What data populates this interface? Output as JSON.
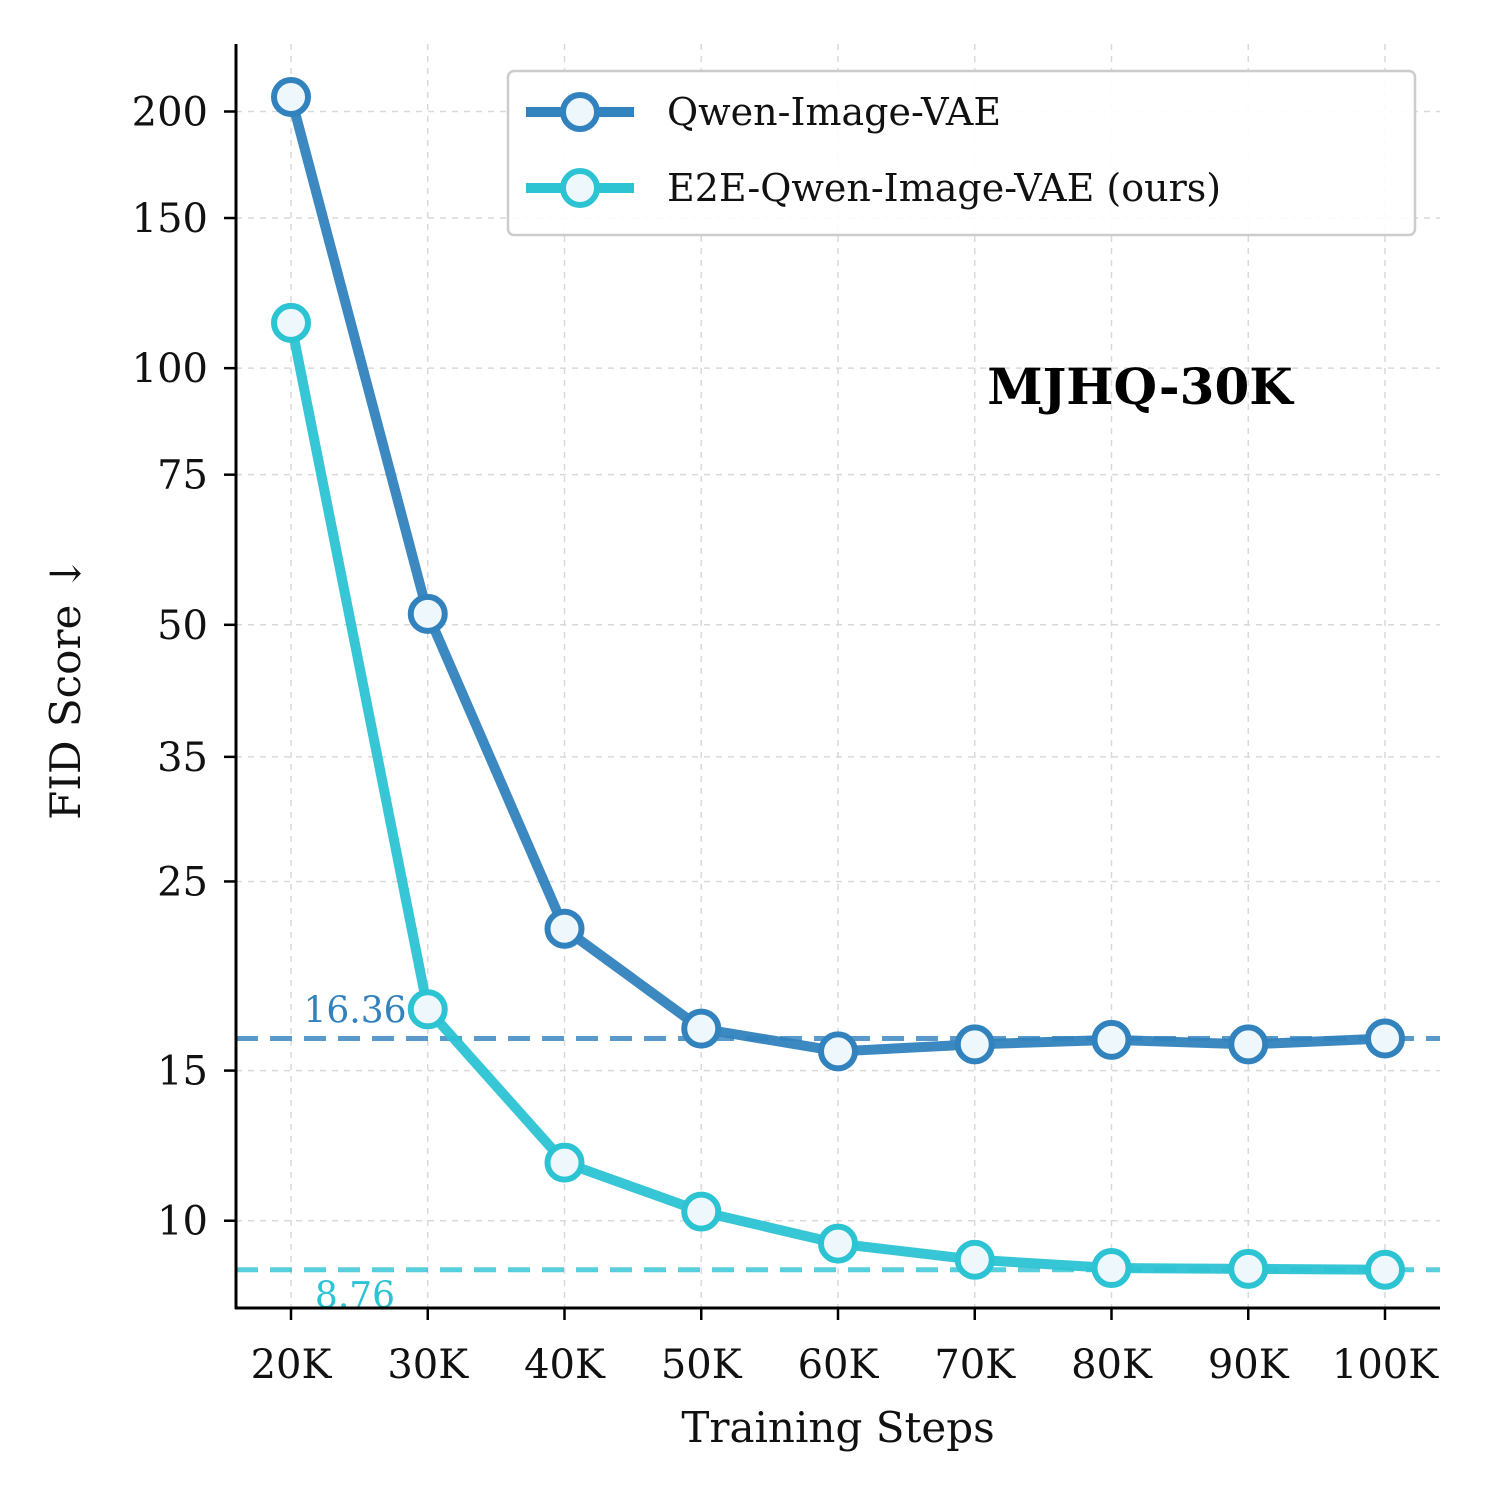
{
  "chart_data": {
    "type": "line",
    "xlabel": "Training Steps",
    "ylabel": "FID Score ↓",
    "annotation": "MJHQ-30K",
    "y_scale": "log",
    "ylim": [
      7.9,
      240
    ],
    "x": [
      20000,
      30000,
      40000,
      50000,
      60000,
      70000,
      80000,
      90000,
      100000
    ],
    "x_tick_labels": [
      "20K",
      "30K",
      "40K",
      "50K",
      "60K",
      "70K",
      "80K",
      "90K",
      "100K"
    ],
    "y_ticks": [
      10,
      15,
      25,
      35,
      50,
      75,
      100,
      150,
      200
    ],
    "y_tick_labels": [
      "10",
      "15",
      "25",
      "35",
      "50",
      "75",
      "100",
      "150",
      "200"
    ],
    "grid": true,
    "legend": "top-right",
    "series": [
      {
        "name": "Qwen-Image-VAE",
        "color": "#3282bd",
        "values": [
          208,
          51.5,
          22.0,
          16.8,
          15.8,
          16.1,
          16.3,
          16.1,
          16.36
        ]
      },
      {
        "name": "E2E-Qwen-Image-VAE (ours)",
        "color": "#2cc3d3",
        "values": [
          113,
          17.7,
          11.7,
          10.25,
          9.4,
          9.0,
          8.8,
          8.78,
          8.76
        ]
      }
    ],
    "reference_lines": [
      {
        "value": 16.36,
        "label": "16.36",
        "color": "#3282bd"
      },
      {
        "value": 8.76,
        "label": "8.76",
        "color": "#2cc3d3"
      }
    ]
  }
}
